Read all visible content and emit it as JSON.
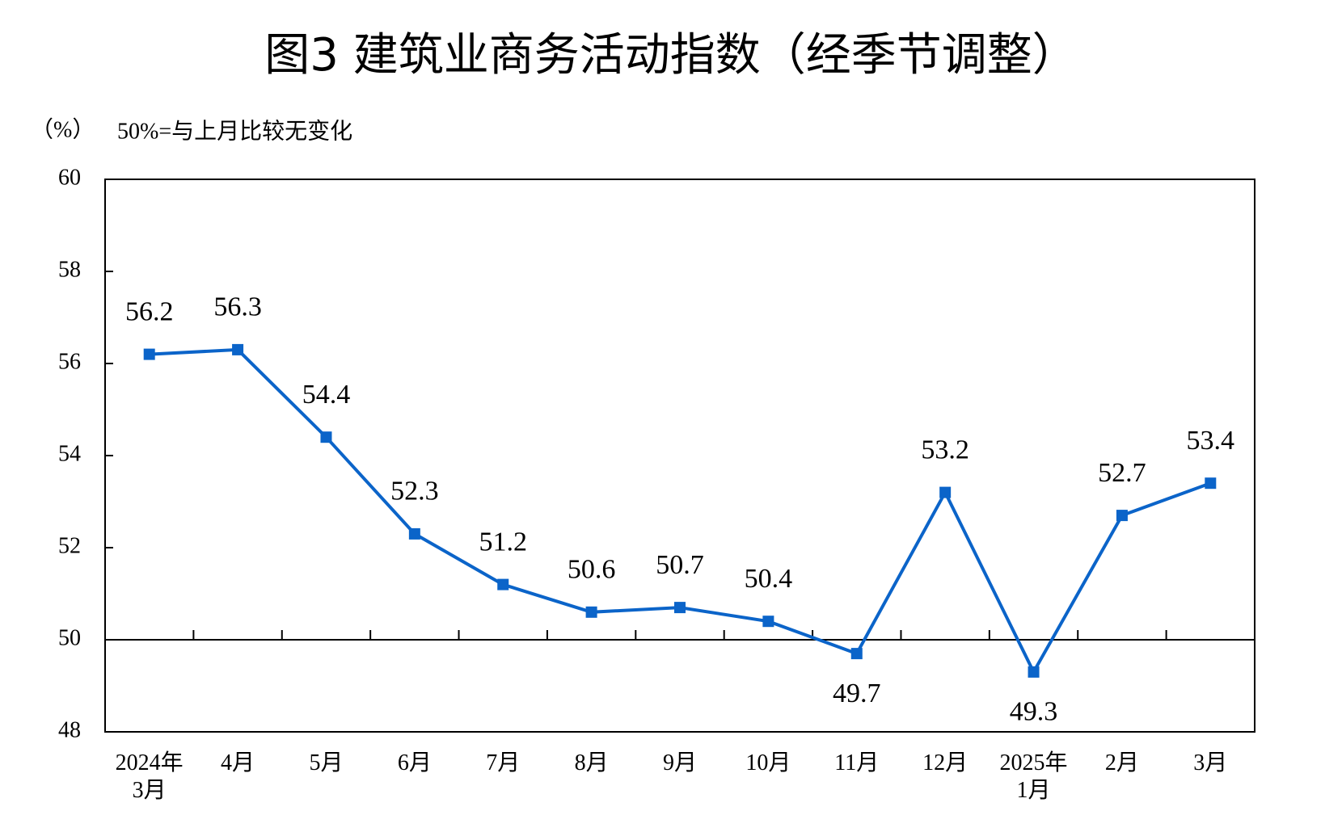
{
  "chart_data": {
    "type": "line",
    "title": "图3  建筑业商务活动指数（经季节调整）",
    "y_label": "（%）",
    "note": "50%=与上月比较无变化",
    "categories": [
      "2024年\n3月",
      "4月",
      "5月",
      "6月",
      "7月",
      "8月",
      "9月",
      "10月",
      "11月",
      "12月",
      "2025年\n1月",
      "2月",
      "3月"
    ],
    "series": [
      {
        "name": "建筑业商务活动指数",
        "color": "#0b64c9",
        "values": [
          56.2,
          56.3,
          54.4,
          52.3,
          51.2,
          50.6,
          50.7,
          50.4,
          49.7,
          53.2,
          49.3,
          52.7,
          53.4
        ]
      }
    ],
    "ylim": [
      48,
      60
    ],
    "yticks": [
      48,
      50,
      52,
      54,
      56,
      58,
      60
    ],
    "x_axis_at": 50,
    "data_labels": true,
    "grid": false
  }
}
